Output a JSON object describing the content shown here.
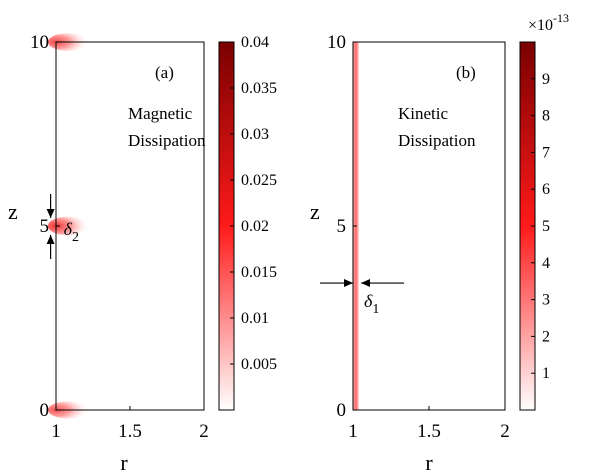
{
  "chart_data": [
    {
      "type": "heatmap",
      "panel_label": "(a)",
      "title": "",
      "annotation_lines": [
        "Magnetic",
        "Dissipation"
      ],
      "xlabel": "r",
      "ylabel": "z",
      "xlim": [
        1,
        2
      ],
      "ylim": [
        0,
        10
      ],
      "xticks": [
        "1",
        "1.5",
        "2"
      ],
      "yticks": [
        "0",
        "5",
        "10"
      ],
      "colorbar": {
        "range": [
          0,
          0.04
        ],
        "ticks": [
          "0.005",
          "0.01",
          "0.015",
          "0.02",
          "0.025",
          "0.03",
          "0.035",
          "0.04"
        ],
        "exponent_label": "",
        "colors": [
          "#ffffff",
          "#ff0000",
          "#800000"
        ]
      },
      "hotspots": [
        {
          "r": 1.08,
          "z": 10,
          "level": 0.6
        },
        {
          "r": 1.08,
          "z": 5,
          "level": 0.8
        },
        {
          "r": 1.08,
          "z": 0,
          "level": 0.5
        }
      ],
      "width_marker": {
        "label": "δ",
        "sub": "2",
        "orientation": "vertical",
        "r": 1.2,
        "z": 5
      }
    },
    {
      "type": "heatmap",
      "panel_label": "(b)",
      "title": "",
      "annotation_lines": [
        "Kinetic",
        "Dissipation"
      ],
      "xlabel": "r",
      "ylabel": "z",
      "xlim": [
        1,
        2
      ],
      "ylim": [
        0,
        10
      ],
      "xticks": [
        "1",
        "1.5",
        "2"
      ],
      "yticks": [
        "0",
        "5",
        "10"
      ],
      "colorbar": {
        "range": [
          0,
          1e-12
        ],
        "ticks": [
          "1",
          "2",
          "3",
          "4",
          "5",
          "6",
          "7",
          "8",
          "9"
        ],
        "exponent_label": "×10",
        "exponent_power": "-13",
        "colors": [
          "#ffffff",
          "#ff0000",
          "#800000"
        ]
      },
      "layer": {
        "r_min": 1.0,
        "r_max": 1.04,
        "z_min": 0,
        "z_max": 10
      },
      "width_marker": {
        "label": "δ",
        "sub": "1",
        "orientation": "horizontal",
        "r": 1.02,
        "z": 3.45
      }
    }
  ]
}
